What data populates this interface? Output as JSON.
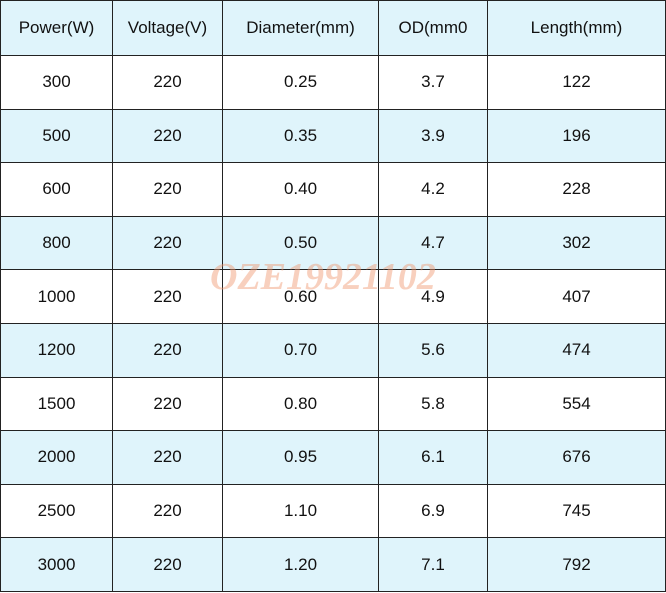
{
  "table": {
    "header": [
      "Power(W)",
      "Voltage(V)",
      "Diameter(mm)",
      "OD(mm0",
      "Length(mm)"
    ],
    "rows": [
      [
        "300",
        "220",
        "0.25",
        "3.7",
        "122"
      ],
      [
        "500",
        "220",
        "0.35",
        "3.9",
        "196"
      ],
      [
        "600",
        "220",
        "0.40",
        "4.2",
        "228"
      ],
      [
        "800",
        "220",
        "0.50",
        "4.7",
        "302"
      ],
      [
        "1000",
        "220",
        "0.60",
        "4.9",
        "407"
      ],
      [
        "1200",
        "220",
        "0.70",
        "5.6",
        "474"
      ],
      [
        "1500",
        "220",
        "0.80",
        "5.8",
        "554"
      ],
      [
        "2000",
        "220",
        "0.95",
        "6.1",
        "676"
      ],
      [
        "2500",
        "220",
        "1.10",
        "6.9",
        "745"
      ],
      [
        "3000",
        "220",
        "1.20",
        "7.1",
        "792"
      ]
    ]
  },
  "watermark": "OZE19921102"
}
